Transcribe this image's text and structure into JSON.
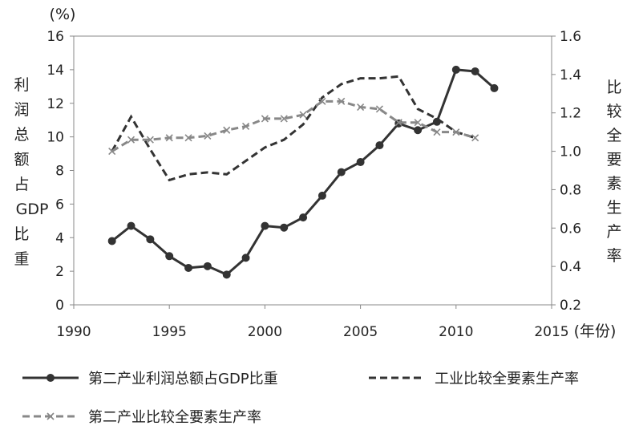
{
  "chart_data": {
    "type": "line",
    "title": "",
    "x": [
      1992,
      1993,
      1994,
      1995,
      1996,
      1997,
      1998,
      1999,
      2000,
      2001,
      2002,
      2003,
      2004,
      2005,
      2006,
      2007,
      2008,
      2009,
      2010,
      2011,
      2012
    ],
    "xlim": [
      1990,
      2015
    ],
    "xticks": [
      "1990",
      "1995",
      "2000",
      "2005",
      "2010",
      "2015"
    ],
    "xlabel": "(年份)",
    "y_left": {
      "unit_label": "(%)",
      "label": "利润总额占GDP比重",
      "ylim": [
        0,
        16
      ],
      "ticks": [
        "0",
        "2",
        "4",
        "6",
        "8",
        "10",
        "12",
        "14",
        "16"
      ]
    },
    "y_right": {
      "label": "比较全要素生产率",
      "ylim": [
        0.2,
        1.6
      ],
      "ticks": [
        "0.2",
        "0.4",
        "0.6",
        "0.8",
        "1.0",
        "1.2",
        "1.4",
        "1.6"
      ]
    },
    "series": [
      {
        "name": "第二产业利润总额占GDP比重",
        "axis": "left",
        "style": "solid-circle",
        "color": "#333333",
        "values": [
          3.8,
          4.7,
          3.9,
          2.9,
          2.2,
          2.3,
          1.8,
          2.8,
          4.7,
          4.6,
          5.2,
          6.5,
          7.9,
          8.5,
          9.5,
          10.8,
          10.4,
          10.9,
          14.0,
          13.9,
          12.9
        ]
      },
      {
        "name": "工业比较全要素生产率",
        "axis": "right",
        "style": "dashed",
        "color": "#333333",
        "values": [
          1.0,
          1.18,
          1.01,
          0.85,
          0.88,
          0.89,
          0.88,
          0.95,
          1.02,
          1.06,
          1.14,
          1.28,
          1.35,
          1.38,
          1.38,
          1.39,
          1.22,
          1.17,
          1.1,
          1.07,
          null
        ]
      },
      {
        "name": "第二产业比较全要素生产率",
        "axis": "right",
        "style": "dashed-cross",
        "color": "#888888",
        "values": [
          1.0,
          1.06,
          1.06,
          1.07,
          1.07,
          1.08,
          1.11,
          1.13,
          1.17,
          1.17,
          1.19,
          1.26,
          1.26,
          1.23,
          1.22,
          1.15,
          1.15,
          1.1,
          1.1,
          1.07,
          null
        ]
      }
    ],
    "legend": "bottom",
    "grid": false
  }
}
